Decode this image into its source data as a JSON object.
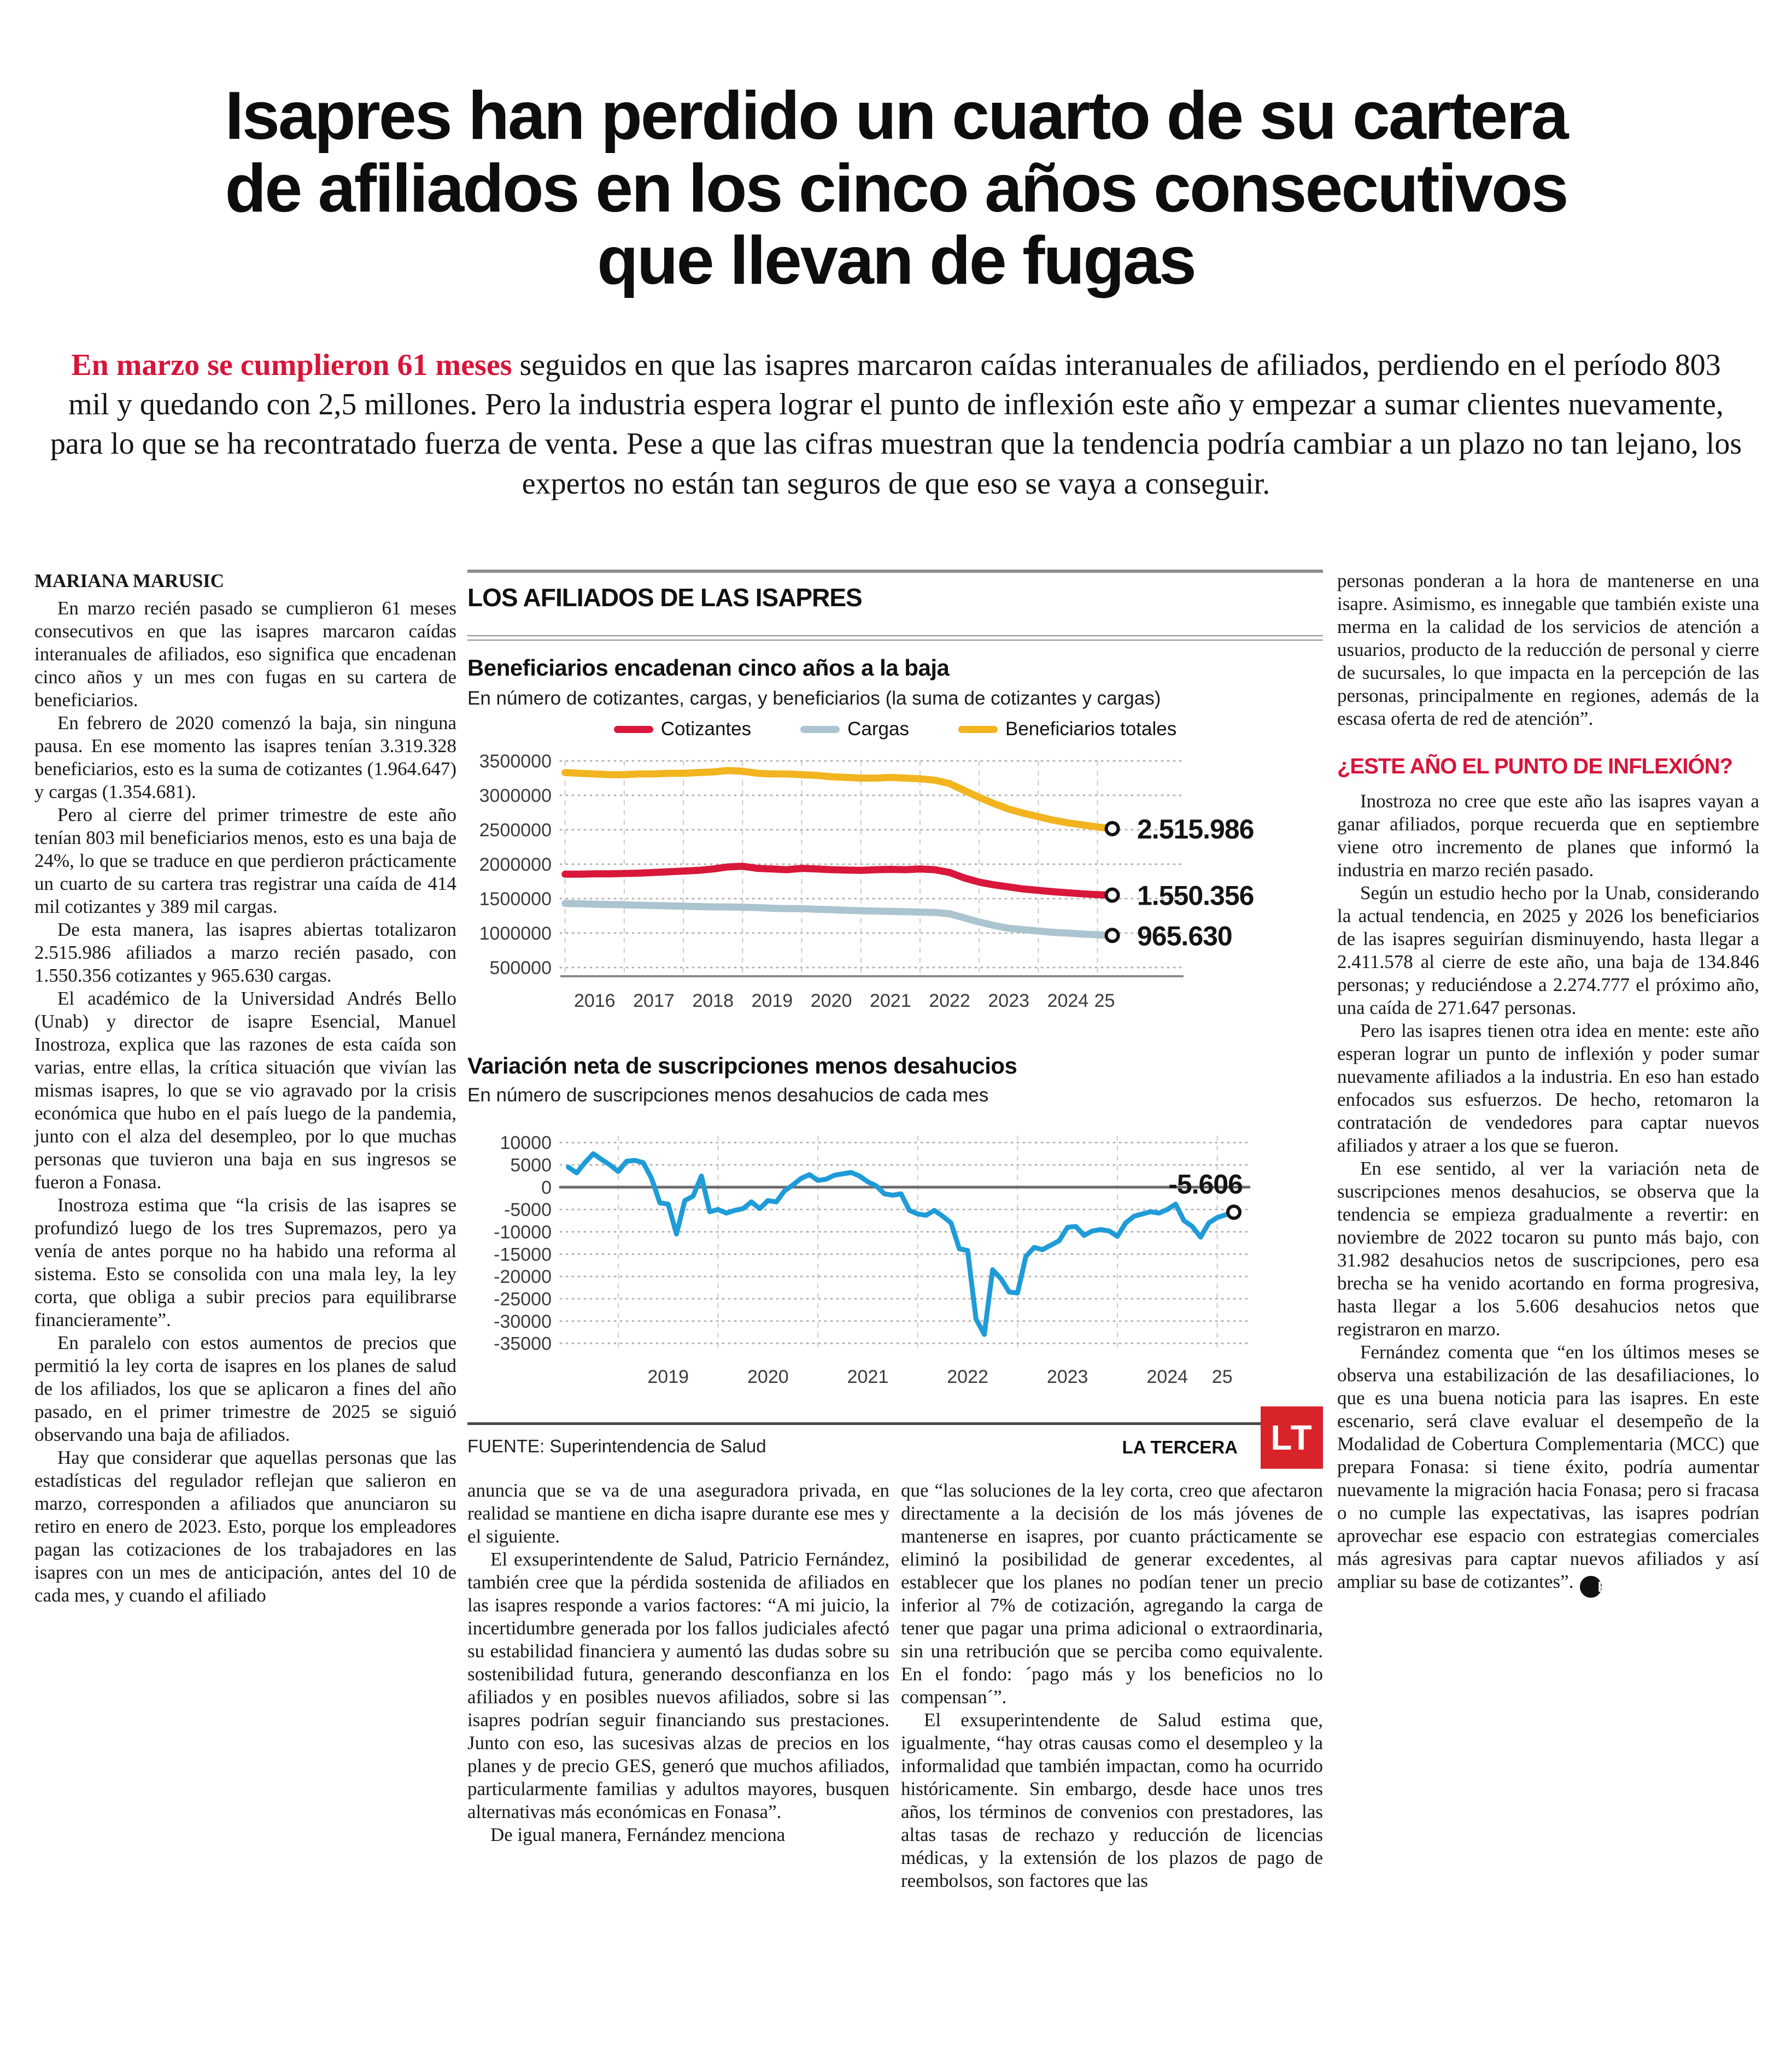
{
  "headline": {
    "lines": [
      "Isapres han perdido un cuarto de su cartera",
      "de afiliados en los cinco años consecutivos",
      "que llevan de fugas"
    ]
  },
  "lede": {
    "kicker": "En marzo se cumplieron 61 meses",
    "text": " seguidos en que las isapres marcaron caídas interanuales de afiliados, perdiendo en el período 803 mil y quedando con 2,5 millones. Pero la industria espera lograr el punto de inflexión este año y empezar a sumar clientes nuevamente, para lo que se ha recontratado fuerza de venta. Pese a que las cifras muestran que la tendencia podría cambiar a un plazo no tan lejano, los expertos no están tan seguros de que eso se vaya a conseguir."
  },
  "byline": "MARIANA MARUSIC",
  "article": {
    "col1": [
      "En marzo recién pasado se cumplieron 61 meses consecutivos en que las isapres marcaron caídas interanuales de afiliados, eso significa que encadenan cinco años y un mes con fugas en su cartera de beneficiarios.",
      "En febrero de 2020 comenzó la baja, sin ninguna pausa. En ese momento las isapres tenían 3.319.328 beneficiarios, esto es la suma de cotizantes (1.964.647) y cargas (1.354.681).",
      "Pero al cierre del primer trimestre de este año tenían 803 mil beneficiarios menos, esto es una baja de 24%, lo que se traduce en que perdieron prácticamente un cuarto de su cartera tras registrar una caída de 414 mil cotizantes y 389 mil cargas.",
      "De esta manera, las isapres abiertas totalizaron 2.515.986 afiliados a marzo recién pasado, con 1.550.356 cotizantes y 965.630 cargas.",
      "El académico de la Universidad Andrés Bello (Unab) y director de isapre Esencial, Manuel Inostroza, explica que las razones de esta caída son varias, entre ellas, la crítica situación que vivían las mismas isapres, lo que se vio agravado por la crisis económica que hubo en el país luego de la pandemia, junto con el alza del desempleo, por lo que muchas personas que tuvieron una baja en sus ingresos se fueron a Fonasa.",
      "Inostroza estima que “la crisis de las isapres se profundizó luego de los tres Supremazos, pero ya venía de antes porque no ha habido una reforma al sistema. Esto se consolida con una mala ley, la ley corta, que obliga a subir precios para equilibrarse financieramente”.",
      "En paralelo con estos aumentos de precios que permitió la ley corta de isapres en los planes de salud de los afiliados, los que se aplicaron a fines del año pasado, en el primer trimestre de 2025 se siguió observando una baja de afiliados.",
      "Hay que considerar que aquellas personas que las estadísticas del regulador reflejan que salieron en marzo, corresponden a afiliados que anunciaron su retiro en enero de 2023. Esto, porque los empleadores pagan las cotizaciones de los trabajadores en las isapres con un mes de anticipación, antes del 10 de cada mes, y cuando el afiliado"
    ],
    "col2": [
      "anuncia que se va de una aseguradora privada, en realidad se mantiene en dicha isapre durante ese mes y el siguiente.",
      "El exsuperintendente de Salud, Patricio Fernández, también cree que la pérdida sostenida de afiliados en las isapres responde a varios factores: “A mi juicio, la incertidumbre generada por los fallos judiciales afectó su estabilidad financiera y aumentó las dudas sobre su sostenibilidad futura, generando desconfianza en los afiliados y en posibles nuevos afiliados, sobre si las isapres podrían seguir financiando sus prestaciones. Junto con eso, las sucesivas alzas de precios en los planes y de precio GES, generó que muchos afiliados, particularmente familias y adultos mayores, busquen alternativas más económicas en Fonasa”.",
      "De igual manera, Fernández menciona"
    ],
    "col3": [
      "que “las soluciones de la ley corta, creo que afectaron directamente a la decisión de los más jóvenes de mantenerse en isapres, por cuanto prácticamente se eliminó la posibilidad de generar excedentes, al establecer que los planes no podían tener un precio inferior al 7% de cotización, agregando la carga de tener que pagar una prima adicional o extraordinaria, sin una retribución que se perciba como equivalente. En el fondo: ´pago más y los beneficios no lo compensan´”.",
      "El exsuperintendente de Salud estima que, igualmente, “hay otras causas como el desempleo y la informalidad que también impactan, como ha ocurrido históricamente. Sin embargo, desde hace unos tres años, los términos de convenios con prestadores, las altas tasas de rechazo y reducción de licencias médicas, y la extensión de los plazos de pago de reembolsos, son factores que las"
    ],
    "col4a": [
      "personas ponderan a la hora de mantenerse en una isapre. Asimismo, es innegable que también existe una merma en la calidad de los servicios de atención a usuarios, producto de la reducción de personal y cierre de sucursales, lo que impacta en la percepción de las personas, principalmente en regiones, además de la escasa oferta de red de atención”."
    ],
    "subhead": "¿ESTE AÑO EL PUNTO DE INFLEXIÓN?",
    "col4b": [
      "Inostroza no cree que este año las isapres vayan a ganar afiliados, porque recuerda que en septiembre viene otro incremento de planes que informó la industria en marzo recién pasado.",
      "Según un estudio hecho por la Unab, considerando la actual tendencia, en 2025 y 2026 los beneficiarios de las isapres seguirían disminuyendo, hasta llegar a 2.411.578 al cierre de este año, una baja de 134.846 personas; y reduciéndose a 2.274.777 el próximo año, una caída de 271.647 personas.",
      "Pero las isapres tienen otra idea en mente: este año esperan lograr un punto de inflexión y poder sumar nuevamente afiliados a la industria. En eso han estado enfocados sus esfuerzos. De hecho, retomaron la contratación de vendedores para captar nuevos afiliados y atraer a los que se fueron.",
      "En ese sentido, al ver la variación neta de suscripciones menos desahucios, se observa que la tendencia se empieza gradualmente a revertir: en noviembre de 2022 tocaron su punto más bajo, con 31.982 desahucios netos de suscripciones, pero esa brecha se ha venido acortando en forma progresiva, hasta llegar a los 5.606 desahucios netos que registraron en marzo.",
      "Fernández comenta que “en los últimos meses se observa una estabilización de las desafiliaciones, lo que es una buena noticia para las isapres. En este escenario, será clave evaluar el desempeño de la Modalidad de Cobertura Complementaria (MCC) que prepara Fonasa: si tiene éxito, podría aumentar nuevamente la migración hacia Fonasa; pero si fracasa o no cumple las expectativas, las isapres podrían aprovechar ese espacio con estrategias comerciales más agresivas para captar nuevos afiliados y así ampliar su base de cotizantes”."
    ],
    "endmark": "P"
  },
  "infographic": {
    "kicker": "LOS AFILIADOS DE LAS ISAPRES",
    "source": "FUENTE: Superintendencia de Salud",
    "credit": "LA TERCERA",
    "logo": "LT",
    "colors": {
      "accent_red": "#d8143a",
      "cotizantes": "#d8173a",
      "cargas": "#abc4cf",
      "beneficiarios": "#f2b41f",
      "variacion_line": "#1f9cd8",
      "logo_bg": "#d8232a"
    }
  },
  "chart_data": [
    {
      "type": "line",
      "title": "Beneficiarios encadenan cinco años a la baja",
      "subtitle": "En número de cotizantes, cargas, y beneficiarios (la suma de cotizantes y cargas)",
      "legend_position": "top",
      "grid": true,
      "ylim": [
        500000,
        3500000
      ],
      "yticks": [
        3500000,
        3000000,
        2500000,
        2000000,
        1500000,
        1000000,
        500000
      ],
      "xlim": [
        2015.92,
        2025.3
      ],
      "grid_x": [
        2016,
        2017,
        2018,
        2019,
        2020,
        2021,
        2022,
        2023,
        2024,
        2025
      ],
      "xticks": [
        {
          "label": "2016",
          "at": 2016.5
        },
        {
          "label": "2017",
          "at": 2017.5
        },
        {
          "label": "2018",
          "at": 2018.5
        },
        {
          "label": "2019",
          "at": 2019.5
        },
        {
          "label": "2020",
          "at": 2020.5
        },
        {
          "label": "2021",
          "at": 2021.5
        },
        {
          "label": "2022",
          "at": 2022.5
        },
        {
          "label": "2023",
          "at": 2023.5
        },
        {
          "label": "2024",
          "at": 2024.5
        },
        {
          "label": "25",
          "at": 2025.12
        }
      ],
      "x_start": 2016.0,
      "x_step": 0.25,
      "series": [
        {
          "name": "Cotizantes",
          "color": "#d8173a",
          "end_label": "1.550.356",
          "values": [
            1855000,
            1855000,
            1860000,
            1860000,
            1865000,
            1870000,
            1880000,
            1890000,
            1900000,
            1910000,
            1930000,
            1960000,
            1970000,
            1940000,
            1930000,
            1920000,
            1940000,
            1930000,
            1920000,
            1915000,
            1910000,
            1920000,
            1925000,
            1920000,
            1930000,
            1920000,
            1880000,
            1800000,
            1740000,
            1700000,
            1670000,
            1640000,
            1620000,
            1600000,
            1585000,
            1570000,
            1558000,
            1550356
          ]
        },
        {
          "name": "Cargas",
          "color": "#abc4cf",
          "end_label": "965.630",
          "values": [
            1430000,
            1425000,
            1420000,
            1415000,
            1410000,
            1405000,
            1400000,
            1395000,
            1390000,
            1385000,
            1380000,
            1380000,
            1375000,
            1370000,
            1360000,
            1355000,
            1355000,
            1345000,
            1340000,
            1330000,
            1325000,
            1320000,
            1315000,
            1310000,
            1305000,
            1300000,
            1280000,
            1220000,
            1160000,
            1110000,
            1070000,
            1050000,
            1030000,
            1010000,
            1000000,
            985000,
            975000,
            965630
          ]
        },
        {
          "name": "Beneficiarios totales",
          "color": "#f2b41f",
          "end_label": "2.515.986",
          "values": [
            3330000,
            3320000,
            3310000,
            3300000,
            3300000,
            3310000,
            3310000,
            3320000,
            3320000,
            3330000,
            3340000,
            3360000,
            3350000,
            3320000,
            3310000,
            3310000,
            3300000,
            3290000,
            3270000,
            3260000,
            3250000,
            3250000,
            3260000,
            3250000,
            3240000,
            3220000,
            3170000,
            3070000,
            2970000,
            2880000,
            2800000,
            2740000,
            2690000,
            2640000,
            2600000,
            2570000,
            2540000,
            2515986
          ]
        }
      ]
    },
    {
      "type": "line",
      "title": "Variación neta de suscripciones menos desahucios",
      "subtitle": "En número de suscripciones menos desahucios de cada mes",
      "grid": true,
      "zero_solid": true,
      "end_label_pos": "above",
      "color": "#1f9cd8",
      "end_label": "-5.606",
      "ylim": [
        -37000,
        11500
      ],
      "yticks": [
        10000,
        5000,
        0,
        -5000,
        -10000,
        -15000,
        -20000,
        -25000,
        -30000,
        -35000
      ],
      "xlim": [
        2018.42,
        2025.32
      ],
      "grid_x": [
        2019,
        2020,
        2021,
        2022,
        2023,
        2024,
        2025
      ],
      "xticks": [
        {
          "label": "2019",
          "at": 2019.5
        },
        {
          "label": "2020",
          "at": 2020.5
        },
        {
          "label": "2021",
          "at": 2021.5
        },
        {
          "label": "2022",
          "at": 2022.5
        },
        {
          "label": "2023",
          "at": 2023.5
        },
        {
          "label": "2024",
          "at": 2024.5
        },
        {
          "label": "25",
          "at": 2025.05
        }
      ],
      "x_start": 2018.5,
      "x_step": 0.0833333,
      "values": [
        4500,
        3200,
        5500,
        7500,
        6200,
        5000,
        3500,
        5800,
        6000,
        5500,
        2000,
        -3500,
        -3800,
        -10500,
        -3000,
        -2000,
        2500,
        -5500,
        -5000,
        -5800,
        -5200,
        -4800,
        -3300,
        -4800,
        -3000,
        -3300,
        -800,
        500,
        2000,
        2800,
        1500,
        1800,
        2700,
        3000,
        3300,
        2500,
        1200,
        300,
        -1500,
        -1800,
        -1500,
        -5200,
        -6000,
        -6300,
        -5200,
        -6500,
        -8000,
        -13800,
        -14200,
        -29500,
        -33000,
        -18500,
        -20500,
        -23500,
        -23700,
        -15500,
        -13500,
        -14000,
        -13000,
        -12000,
        -9000,
        -8800,
        -10800,
        -9800,
        -9500,
        -9800,
        -11000,
        -8000,
        -6500,
        -6000,
        -5500,
        -5800,
        -5000,
        -3800,
        -7500,
        -8800,
        -11200,
        -8000,
        -6800,
        -6200,
        -5606
      ]
    }
  ]
}
